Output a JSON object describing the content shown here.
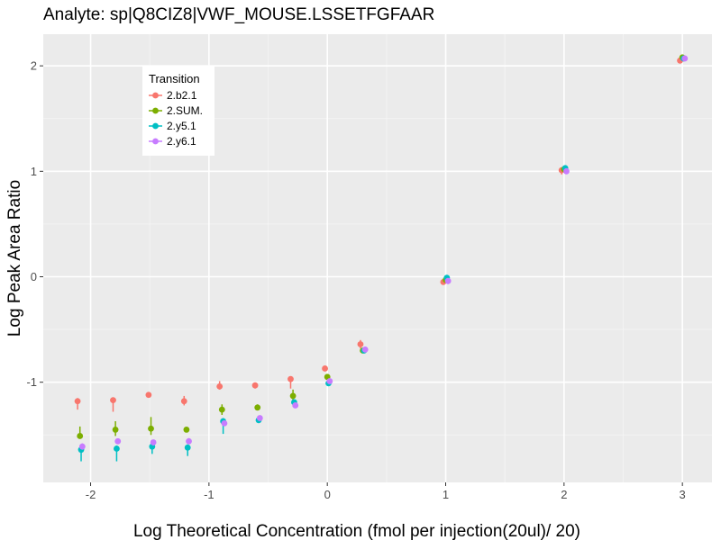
{
  "chart_data": {
    "type": "scatter",
    "title": "Analyte: sp|Q8CIZ8|VWF_MOUSE.LSSETFGFAAR",
    "xlabel": "Log Theoretical Concentration (fmol per injection(20ul)/ 20)",
    "ylabel": "Log Peak Area Ratio",
    "xlim": [
      -2.4,
      3.25
    ],
    "ylim": [
      -1.95,
      2.3
    ],
    "x_ticks": [
      -2,
      -1,
      0,
      1,
      2,
      3
    ],
    "x_tick_labels": [
      "-2",
      "-1",
      "0",
      "1",
      "2",
      "3"
    ],
    "y_ticks": [
      -1,
      0,
      1,
      2
    ],
    "y_tick_labels": [
      "-1",
      "0",
      "1",
      "2"
    ],
    "x_minor_ticks": [
      -1.5,
      -0.5,
      0.5,
      1.5,
      2.5
    ],
    "y_minor_ticks": [
      -1.5,
      -0.5,
      0.5,
      1.5
    ],
    "grid": true,
    "background": "#ebebeb",
    "legend": {
      "title": "Transition",
      "placement": "top-left"
    },
    "series": [
      {
        "name": "2.b2.1",
        "color": "#f8766d",
        "points": [
          {
            "x": -2.11,
            "y": -1.18,
            "err_low": -1.26,
            "err_high": -1.15
          },
          {
            "x": -1.81,
            "y": -1.17,
            "err_low": -1.28,
            "err_high": -1.15
          },
          {
            "x": -1.51,
            "y": -1.12,
            "err_low": -1.14,
            "err_high": -1.11
          },
          {
            "x": -1.21,
            "y": -1.18,
            "err_low": -1.22,
            "err_high": -1.13
          },
          {
            "x": -0.91,
            "y": -1.04,
            "err_low": -1.07,
            "err_high": -0.99
          },
          {
            "x": -0.61,
            "y": -1.03,
            "err_low": -1.06,
            "err_high": -1.01
          },
          {
            "x": -0.31,
            "y": -0.97,
            "err_low": -1.06,
            "err_high": -0.96
          },
          {
            "x": -0.02,
            "y": -0.87,
            "err_low": -0.89,
            "err_high": -0.86
          },
          {
            "x": 0.28,
            "y": -0.64,
            "err_low": -0.68,
            "err_high": -0.6
          },
          {
            "x": 0.98,
            "y": -0.05,
            "err_low": -0.06,
            "err_high": -0.03
          },
          {
            "x": 1.98,
            "y": 1.01,
            "err_low": 0.97,
            "err_high": 1.03
          },
          {
            "x": 2.98,
            "y": 2.05,
            "err_low": 2.04,
            "err_high": 2.07
          }
        ]
      },
      {
        "name": "2.SUM.",
        "color": "#7cae00",
        "points": [
          {
            "x": -2.09,
            "y": -1.51,
            "err_low": -1.53,
            "err_high": -1.42
          },
          {
            "x": -1.79,
            "y": -1.45,
            "err_low": -1.51,
            "err_high": -1.37
          },
          {
            "x": -1.49,
            "y": -1.44,
            "err_low": -1.5,
            "err_high": -1.33
          },
          {
            "x": -1.19,
            "y": -1.45,
            "err_low": -1.46,
            "err_high": -1.43
          },
          {
            "x": -0.89,
            "y": -1.26,
            "err_low": -1.31,
            "err_high": -1.21
          },
          {
            "x": -0.59,
            "y": -1.24,
            "err_low": -1.26,
            "err_high": -1.21
          },
          {
            "x": -0.29,
            "y": -1.13,
            "err_low": -1.17,
            "err_high": -1.07
          },
          {
            "x": 0.0,
            "y": -0.95,
            "err_low": -0.97,
            "err_high": -0.94
          },
          {
            "x": 0.3,
            "y": -0.7,
            "err_low": -0.72,
            "err_high": -0.68
          },
          {
            "x": 1.0,
            "y": -0.03,
            "err_low": -0.04,
            "err_high": -0.02
          },
          {
            "x": 2.0,
            "y": 1.02,
            "err_low": 1.01,
            "err_high": 1.03
          },
          {
            "x": 3.0,
            "y": 2.08,
            "err_low": 2.07,
            "err_high": 2.09
          }
        ]
      },
      {
        "name": "2.y5.1",
        "color": "#00bfc4",
        "points": [
          {
            "x": -2.08,
            "y": -1.64,
            "err_low": -1.75,
            "err_high": -1.61
          },
          {
            "x": -1.78,
            "y": -1.63,
            "err_low": -1.75,
            "err_high": -1.6
          },
          {
            "x": -1.48,
            "y": -1.61,
            "err_low": -1.68,
            "err_high": -1.59
          },
          {
            "x": -1.18,
            "y": -1.62,
            "err_low": -1.7,
            "err_high": -1.59
          },
          {
            "x": -0.88,
            "y": -1.37,
            "err_low": -1.49,
            "err_high": -1.34
          },
          {
            "x": -0.58,
            "y": -1.36,
            "err_low": -1.38,
            "err_high": -1.34
          },
          {
            "x": -0.28,
            "y": -1.19,
            "err_low": -1.21,
            "err_high": -1.17
          },
          {
            "x": 0.01,
            "y": -1.01,
            "err_low": -1.02,
            "err_high": -0.99
          },
          {
            "x": 0.31,
            "y": -0.7,
            "err_low": -0.71,
            "err_high": -0.69
          },
          {
            "x": 1.01,
            "y": -0.01,
            "err_low": -0.02,
            "err_high": 0.0
          },
          {
            "x": 2.01,
            "y": 1.03,
            "err_low": 1.02,
            "err_high": 1.04
          },
          {
            "x": 3.01,
            "y": 2.07,
            "err_low": 2.06,
            "err_high": 2.08
          }
        ]
      },
      {
        "name": "2.y6.1",
        "color": "#c77cff",
        "points": [
          {
            "x": -2.07,
            "y": -1.61,
            "err_low": -1.64,
            "err_high": -1.58
          },
          {
            "x": -1.77,
            "y": -1.56,
            "err_low": -1.58,
            "err_high": -1.54
          },
          {
            "x": -1.47,
            "y": -1.57,
            "err_low": -1.6,
            "err_high": -1.55
          },
          {
            "x": -1.17,
            "y": -1.56,
            "err_low": -1.58,
            "err_high": -1.53
          },
          {
            "x": -0.87,
            "y": -1.39,
            "err_low": -1.41,
            "err_high": -1.37
          },
          {
            "x": -0.57,
            "y": -1.34,
            "err_low": -1.36,
            "err_high": -1.33
          },
          {
            "x": -0.27,
            "y": -1.22,
            "err_low": -1.24,
            "err_high": -1.2
          },
          {
            "x": 0.02,
            "y": -0.99,
            "err_low": -1.0,
            "err_high": -0.98
          },
          {
            "x": 0.32,
            "y": -0.69,
            "err_low": -0.7,
            "err_high": -0.68
          },
          {
            "x": 1.02,
            "y": -0.04,
            "err_low": -0.07,
            "err_high": -0.02
          },
          {
            "x": 2.02,
            "y": 1.0,
            "err_low": 0.99,
            "err_high": 1.01
          },
          {
            "x": 3.02,
            "y": 2.07,
            "err_low": 2.06,
            "err_high": 2.08
          }
        ]
      }
    ]
  }
}
